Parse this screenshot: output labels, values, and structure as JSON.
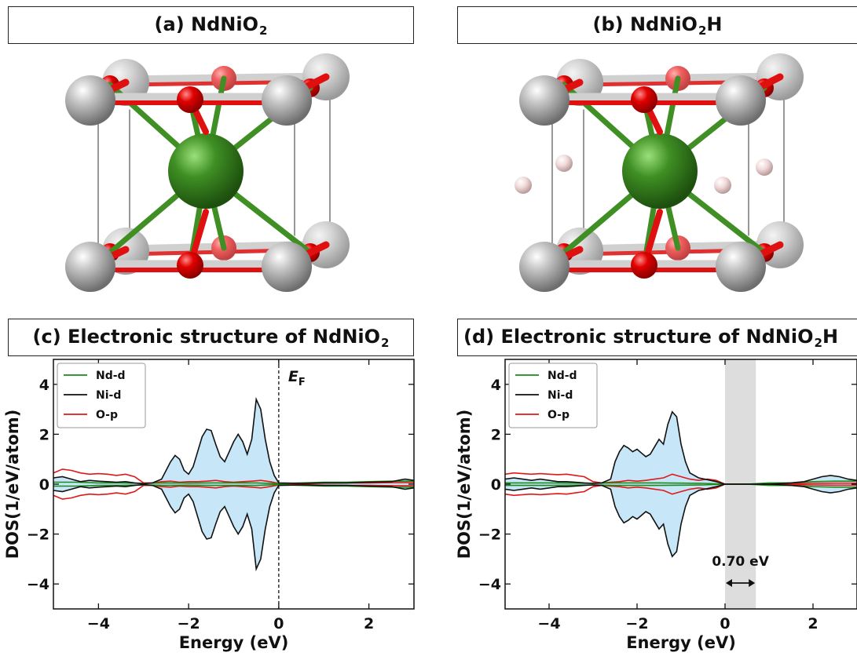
{
  "panels": {
    "a": {
      "title_main": "(a) NdNiO",
      "title_sub": "2",
      "title_tail": ""
    },
    "b": {
      "title_main": "(b) NdNiO",
      "title_sub": "2",
      "title_tail": "H"
    },
    "c": {
      "title_main": "(c) Electronic structure of NdNiO",
      "title_sub": "2",
      "title_tail": ""
    },
    "d": {
      "title_main": "(d) Electronic structure of NdNiO",
      "title_sub": "2",
      "title_tail": "H"
    }
  },
  "colors": {
    "nd_atom": "#3f8f24",
    "ni_atom": "#a9a9a9",
    "o_atom": "#d40000",
    "h_atom": "#f0d8d8",
    "fill": "#c7e6f8",
    "nd_d": "#1a8a1a",
    "ni_d": "#111111",
    "o_p": "#e01818",
    "gap": "#dddddd"
  },
  "chart_data": [
    {
      "type": "area",
      "title": "(c) Electronic structure of NdNiO2",
      "xlabel": "Energy (eV)",
      "ylabel": "DOS(1/eV/atom)",
      "xlim": [
        -5,
        3
      ],
      "ylim": [
        -5,
        5
      ],
      "xticks": [
        "−4",
        "−2",
        "0",
        "2"
      ],
      "yticks": [
        "4",
        "2",
        "0",
        "−2",
        "−4"
      ],
      "legend": "top-left",
      "fermi_label": "E",
      "fermi_sub": "F",
      "series": [
        {
          "name": "Nd-d",
          "x": [
            -5,
            -4.5,
            -4,
            -3.5,
            -3,
            -2.5,
            -2,
            -1.5,
            -1,
            -0.5,
            0,
            0.5,
            1,
            1.5,
            2,
            2.5,
            3
          ],
          "values": [
            0.08,
            0.08,
            0.05,
            0.05,
            0.03,
            0.05,
            0.04,
            0.05,
            0.05,
            0.05,
            0.02,
            0.05,
            0.08,
            0.08,
            0.1,
            0.12,
            0.12
          ]
        },
        {
          "name": "Ni-d",
          "x": [
            -5,
            -4.8,
            -4.6,
            -4.4,
            -4.2,
            -4,
            -3.8,
            -3.6,
            -3.4,
            -3.2,
            -3,
            -2.8,
            -2.6,
            -2.4,
            -2.3,
            -2.2,
            -2.1,
            -2.0,
            -1.9,
            -1.8,
            -1.7,
            -1.6,
            -1.5,
            -1.4,
            -1.3,
            -1.2,
            -1.1,
            -1.0,
            -0.9,
            -0.8,
            -0.7,
            -0.6,
            -0.5,
            -0.4,
            -0.3,
            -0.2,
            -0.1,
            0,
            0.5,
            1,
            1.5,
            2,
            2.5,
            2.8,
            3
          ],
          "values": [
            0.25,
            0.3,
            0.2,
            0.1,
            0.15,
            0.12,
            0.1,
            0.08,
            0.1,
            0.05,
            0.02,
            0.05,
            0.2,
            0.9,
            1.15,
            1.0,
            0.55,
            0.4,
            0.7,
            1.3,
            1.9,
            2.2,
            2.15,
            1.6,
            1.1,
            0.9,
            1.3,
            1.7,
            2.0,
            1.7,
            1.2,
            1.8,
            3.4,
            3.0,
            1.8,
            0.9,
            0.35,
            0.05,
            0.03,
            0.05,
            0.05,
            0.08,
            0.1,
            0.2,
            0.15
          ]
        },
        {
          "name": "O-p",
          "x": [
            -5,
            -4.8,
            -4.6,
            -4.4,
            -4.2,
            -4,
            -3.8,
            -3.6,
            -3.4,
            -3.2,
            -3,
            -2.8,
            -2.6,
            -2.4,
            -2.2,
            -2.0,
            -1.8,
            -1.6,
            -1.4,
            -1.2,
            -1.0,
            -0.8,
            -0.6,
            -0.4,
            -0.2,
            0,
            0.5,
            1,
            1.5,
            2,
            2.5,
            3
          ],
          "values": [
            0.45,
            0.6,
            0.55,
            0.45,
            0.4,
            0.42,
            0.4,
            0.35,
            0.4,
            0.3,
            0.05,
            0.05,
            0.1,
            0.12,
            0.08,
            0.1,
            0.1,
            0.12,
            0.15,
            0.1,
            0.08,
            0.1,
            0.12,
            0.15,
            0.1,
            0.03,
            0.02,
            0.04,
            0.05,
            0.05,
            0.06,
            0.06
          ]
        }
      ]
    },
    {
      "type": "area",
      "title": "(d) Electronic structure of NdNiO2H",
      "xlabel": "Energy (eV)",
      "ylabel": "DOS(1/eV/atom)",
      "xlim": [
        -5,
        3
      ],
      "ylim": [
        -5,
        5
      ],
      "xticks": [
        "−4",
        "−2",
        "0",
        "2"
      ],
      "yticks": [
        "4",
        "2",
        "0",
        "−2",
        "−4"
      ],
      "legend": "top-left",
      "gap_range": [
        0,
        0.7
      ],
      "gap_label": "0.70 eV",
      "series": [
        {
          "name": "Nd-d",
          "x": [
            -5,
            -4.5,
            -4,
            -3.5,
            -3,
            -2.5,
            -2,
            -1.5,
            -1,
            -0.5,
            0,
            0.5,
            1,
            1.5,
            2,
            2.5,
            3
          ],
          "values": [
            0.05,
            0.05,
            0.05,
            0.04,
            0.03,
            0.05,
            0.05,
            0.05,
            0.04,
            0.03,
            0.0,
            0.0,
            0.05,
            0.05,
            0.1,
            0.12,
            0.12
          ]
        },
        {
          "name": "Ni-d",
          "x": [
            -5,
            -4.8,
            -4.6,
            -4.4,
            -4.2,
            -4,
            -3.8,
            -3.6,
            -3.4,
            -3.2,
            -3,
            -2.8,
            -2.6,
            -2.5,
            -2.4,
            -2.3,
            -2.2,
            -2.1,
            -2.0,
            -1.9,
            -1.8,
            -1.7,
            -1.6,
            -1.5,
            -1.4,
            -1.3,
            -1.2,
            -1.1,
            -1.0,
            -0.9,
            -0.8,
            -0.6,
            -0.4,
            -0.2,
            0,
            0.5,
            1,
            1.5,
            1.8,
            2.0,
            2.2,
            2.4,
            2.6,
            2.8,
            3
          ],
          "values": [
            0.2,
            0.25,
            0.2,
            0.15,
            0.2,
            0.15,
            0.1,
            0.1,
            0.08,
            0.05,
            0.03,
            0.05,
            0.2,
            0.9,
            1.3,
            1.55,
            1.45,
            1.3,
            1.4,
            1.25,
            1.1,
            1.2,
            1.5,
            1.8,
            1.6,
            2.4,
            2.9,
            2.7,
            1.6,
            0.9,
            0.45,
            0.25,
            0.18,
            0.1,
            0.0,
            0.0,
            0.0,
            0.05,
            0.1,
            0.2,
            0.3,
            0.35,
            0.3,
            0.2,
            0.15
          ]
        },
        {
          "name": "O-p",
          "x": [
            -5,
            -4.8,
            -4.6,
            -4.4,
            -4.2,
            -4,
            -3.8,
            -3.6,
            -3.4,
            -3.2,
            -3,
            -2.8,
            -2.6,
            -2.4,
            -2.2,
            -2.0,
            -1.8,
            -1.6,
            -1.4,
            -1.2,
            -1.0,
            -0.8,
            -0.6,
            -0.4,
            -0.2,
            0,
            0.5,
            1,
            1.5,
            2,
            2.5,
            3
          ],
          "values": [
            0.4,
            0.45,
            0.42,
            0.4,
            0.42,
            0.4,
            0.38,
            0.4,
            0.35,
            0.3,
            0.1,
            0.05,
            0.08,
            0.1,
            0.15,
            0.12,
            0.15,
            0.2,
            0.25,
            0.4,
            0.3,
            0.2,
            0.15,
            0.2,
            0.15,
            0.0,
            0.0,
            0.0,
            0.02,
            0.03,
            0.04,
            0.04
          ]
        }
      ]
    }
  ]
}
